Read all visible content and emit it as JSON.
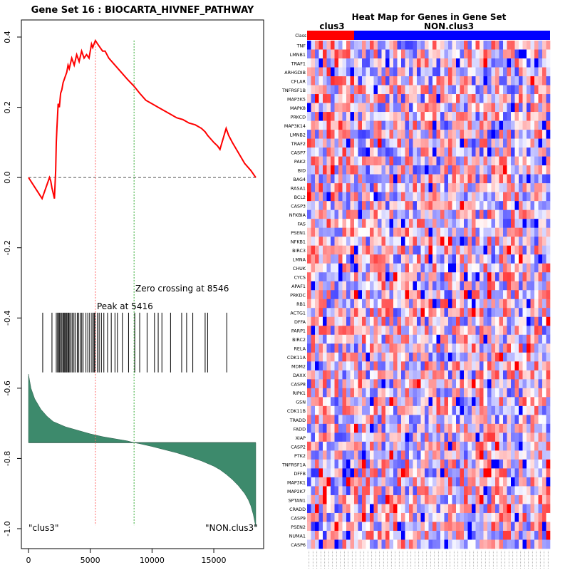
{
  "gsea_plot": {
    "title": "Gene Set  16 : BIOCARTA_HIVNEF_PATHWAY",
    "peak_label": "Peak at 5416",
    "zero_label": "Zero crossing at 8546",
    "left_class_label": "\"clus3\"",
    "right_class_label": "\"NON.clus3\""
  },
  "heatmap": {
    "title": "Heat Map for Genes in Gene Set",
    "class_row_label": "Class",
    "group_labels": [
      "clus3",
      "NON.clus3"
    ],
    "genes": [
      "TNF",
      "LMNB1",
      "TRAF1",
      "ARHGDIB",
      "CFLAR",
      "TNFRSF1B",
      "MAP3K5",
      "MAPK8",
      "PRKCD",
      "MAP3K14",
      "LMNB2",
      "TRAF2",
      "CASP7",
      "PAK2",
      "BID",
      "BAG4",
      "RASA1",
      "BCL2",
      "CASP3",
      "NFKBIA",
      "FAS",
      "PSEN1",
      "NFKB1",
      "BIRC3",
      "LMNA",
      "CHUK",
      "CYCS",
      "APAF1",
      "PRKDC",
      "RB1",
      "ACTG1",
      "DFFA",
      "PARP1",
      "BIRC2",
      "RELA",
      "CDK11A",
      "MDM2",
      "DAXX",
      "CASP8",
      "RIPK1",
      "GSN",
      "CDK11B",
      "TRADD",
      "FADD",
      "XIAP",
      "CASP2",
      "PTK2",
      "TNFRSF1A",
      "DFFB",
      "MAP3K1",
      "MAP2K7",
      "SPTAN1",
      "CRADD",
      "CASP9",
      "PSEN2",
      "NUMA1",
      "CASP6"
    ],
    "colors": {
      "clus3": "#ff0000",
      "non_clus3": "#0000ff",
      "high": "#ff0000",
      "low": "#0000ff"
    }
  },
  "chart_data": [
    {
      "type": "line",
      "title": "Gene Set  16 : BIOCARTA_HIVNEF_PATHWAY",
      "xlim": [
        0,
        18400
      ],
      "ylim": [
        -1.0,
        0.4
      ],
      "x_ticks": [
        0,
        5000,
        10000,
        15000
      ],
      "y_ticks": [
        -1.0,
        -0.8,
        -0.6,
        -0.4,
        -0.2,
        0.0,
        0.2,
        0.4
      ],
      "peak_x": 5416,
      "zero_crossing_x": 8546,
      "colors": {
        "es_line": "#ff0000",
        "peak_line": "#ff6666",
        "zero_line": "#33aa33",
        "metric_fill": "#3d8a6c"
      },
      "running_es": {
        "x": [
          0,
          1100,
          1200,
          1300,
          1400,
          1500,
          1600,
          1700,
          1800,
          1900,
          2000,
          2100,
          2200,
          2250,
          2300,
          2400,
          2500,
          2600,
          2700,
          2800,
          2900,
          3000,
          3100,
          3200,
          3300,
          3500,
          3700,
          3900,
          4100,
          4300,
          4500,
          4700,
          4900,
          5100,
          5200,
          5300,
          5416,
          5600,
          5800,
          6000,
          6200,
          6500,
          7000,
          7500,
          8000,
          8546,
          9000,
          9500,
          10000,
          10500,
          11000,
          11500,
          12000,
          12500,
          13000,
          13500,
          14000,
          14300,
          14500,
          15000,
          15300,
          15500,
          16000,
          16200,
          16500,
          17000,
          17500,
          18000,
          18400
        ],
        "y": [
          0.0,
          -0.06,
          -0.05,
          -0.04,
          -0.03,
          -0.02,
          -0.01,
          0.0,
          -0.01,
          -0.03,
          -0.045,
          -0.06,
          0.02,
          0.1,
          0.14,
          0.21,
          0.2,
          0.24,
          0.25,
          0.27,
          0.28,
          0.29,
          0.3,
          0.32,
          0.31,
          0.34,
          0.32,
          0.35,
          0.33,
          0.36,
          0.34,
          0.35,
          0.34,
          0.38,
          0.37,
          0.38,
          0.39,
          0.38,
          0.37,
          0.36,
          0.36,
          0.34,
          0.32,
          0.3,
          0.28,
          0.26,
          0.24,
          0.22,
          0.21,
          0.2,
          0.19,
          0.18,
          0.17,
          0.165,
          0.155,
          0.15,
          0.14,
          0.13,
          0.12,
          0.1,
          0.09,
          0.08,
          0.14,
          0.12,
          0.1,
          0.07,
          0.04,
          0.02,
          0.0
        ]
      },
      "hits": [
        1150,
        1900,
        2250,
        2350,
        2450,
        2520,
        2600,
        2700,
        2790,
        2870,
        2940,
        3020,
        3100,
        3180,
        3260,
        3340,
        3450,
        3560,
        3680,
        3800,
        3950,
        4060,
        4180,
        4310,
        4420,
        4650,
        4800,
        4950,
        5130,
        5250,
        5330,
        5416,
        5580,
        5720,
        5900,
        6100,
        6400,
        6700,
        7000,
        7200,
        7600,
        8100,
        8600,
        9000,
        9600,
        10200,
        10500,
        10800,
        11500,
        12400,
        12800,
        13300,
        14300,
        14500,
        16050
      ],
      "ranked_metric": {
        "x": [
          0,
          200,
          500,
          1000,
          1500,
          2000,
          3000,
          4000,
          5000,
          6000,
          7000,
          8000,
          8546,
          9000,
          10000,
          11000,
          12000,
          13000,
          14000,
          15000,
          15500,
          16000,
          16500,
          17000,
          17500,
          17800,
          18000,
          18200,
          18400
        ],
        "y": [
          -0.56,
          -0.6,
          -0.63,
          -0.66,
          -0.68,
          -0.695,
          -0.71,
          -0.72,
          -0.73,
          -0.738,
          -0.744,
          -0.75,
          -0.755,
          -0.758,
          -0.766,
          -0.775,
          -0.784,
          -0.795,
          -0.807,
          -0.822,
          -0.832,
          -0.845,
          -0.86,
          -0.878,
          -0.9,
          -0.918,
          -0.935,
          -0.96,
          -0.995
        ]
      }
    },
    {
      "type": "heatmap",
      "title": "Heat Map for Genes in Gene Set",
      "rows": 57,
      "columns": 62,
      "clus3_columns": 12,
      "row_labels_ref": "heatmap.genes"
    }
  ]
}
